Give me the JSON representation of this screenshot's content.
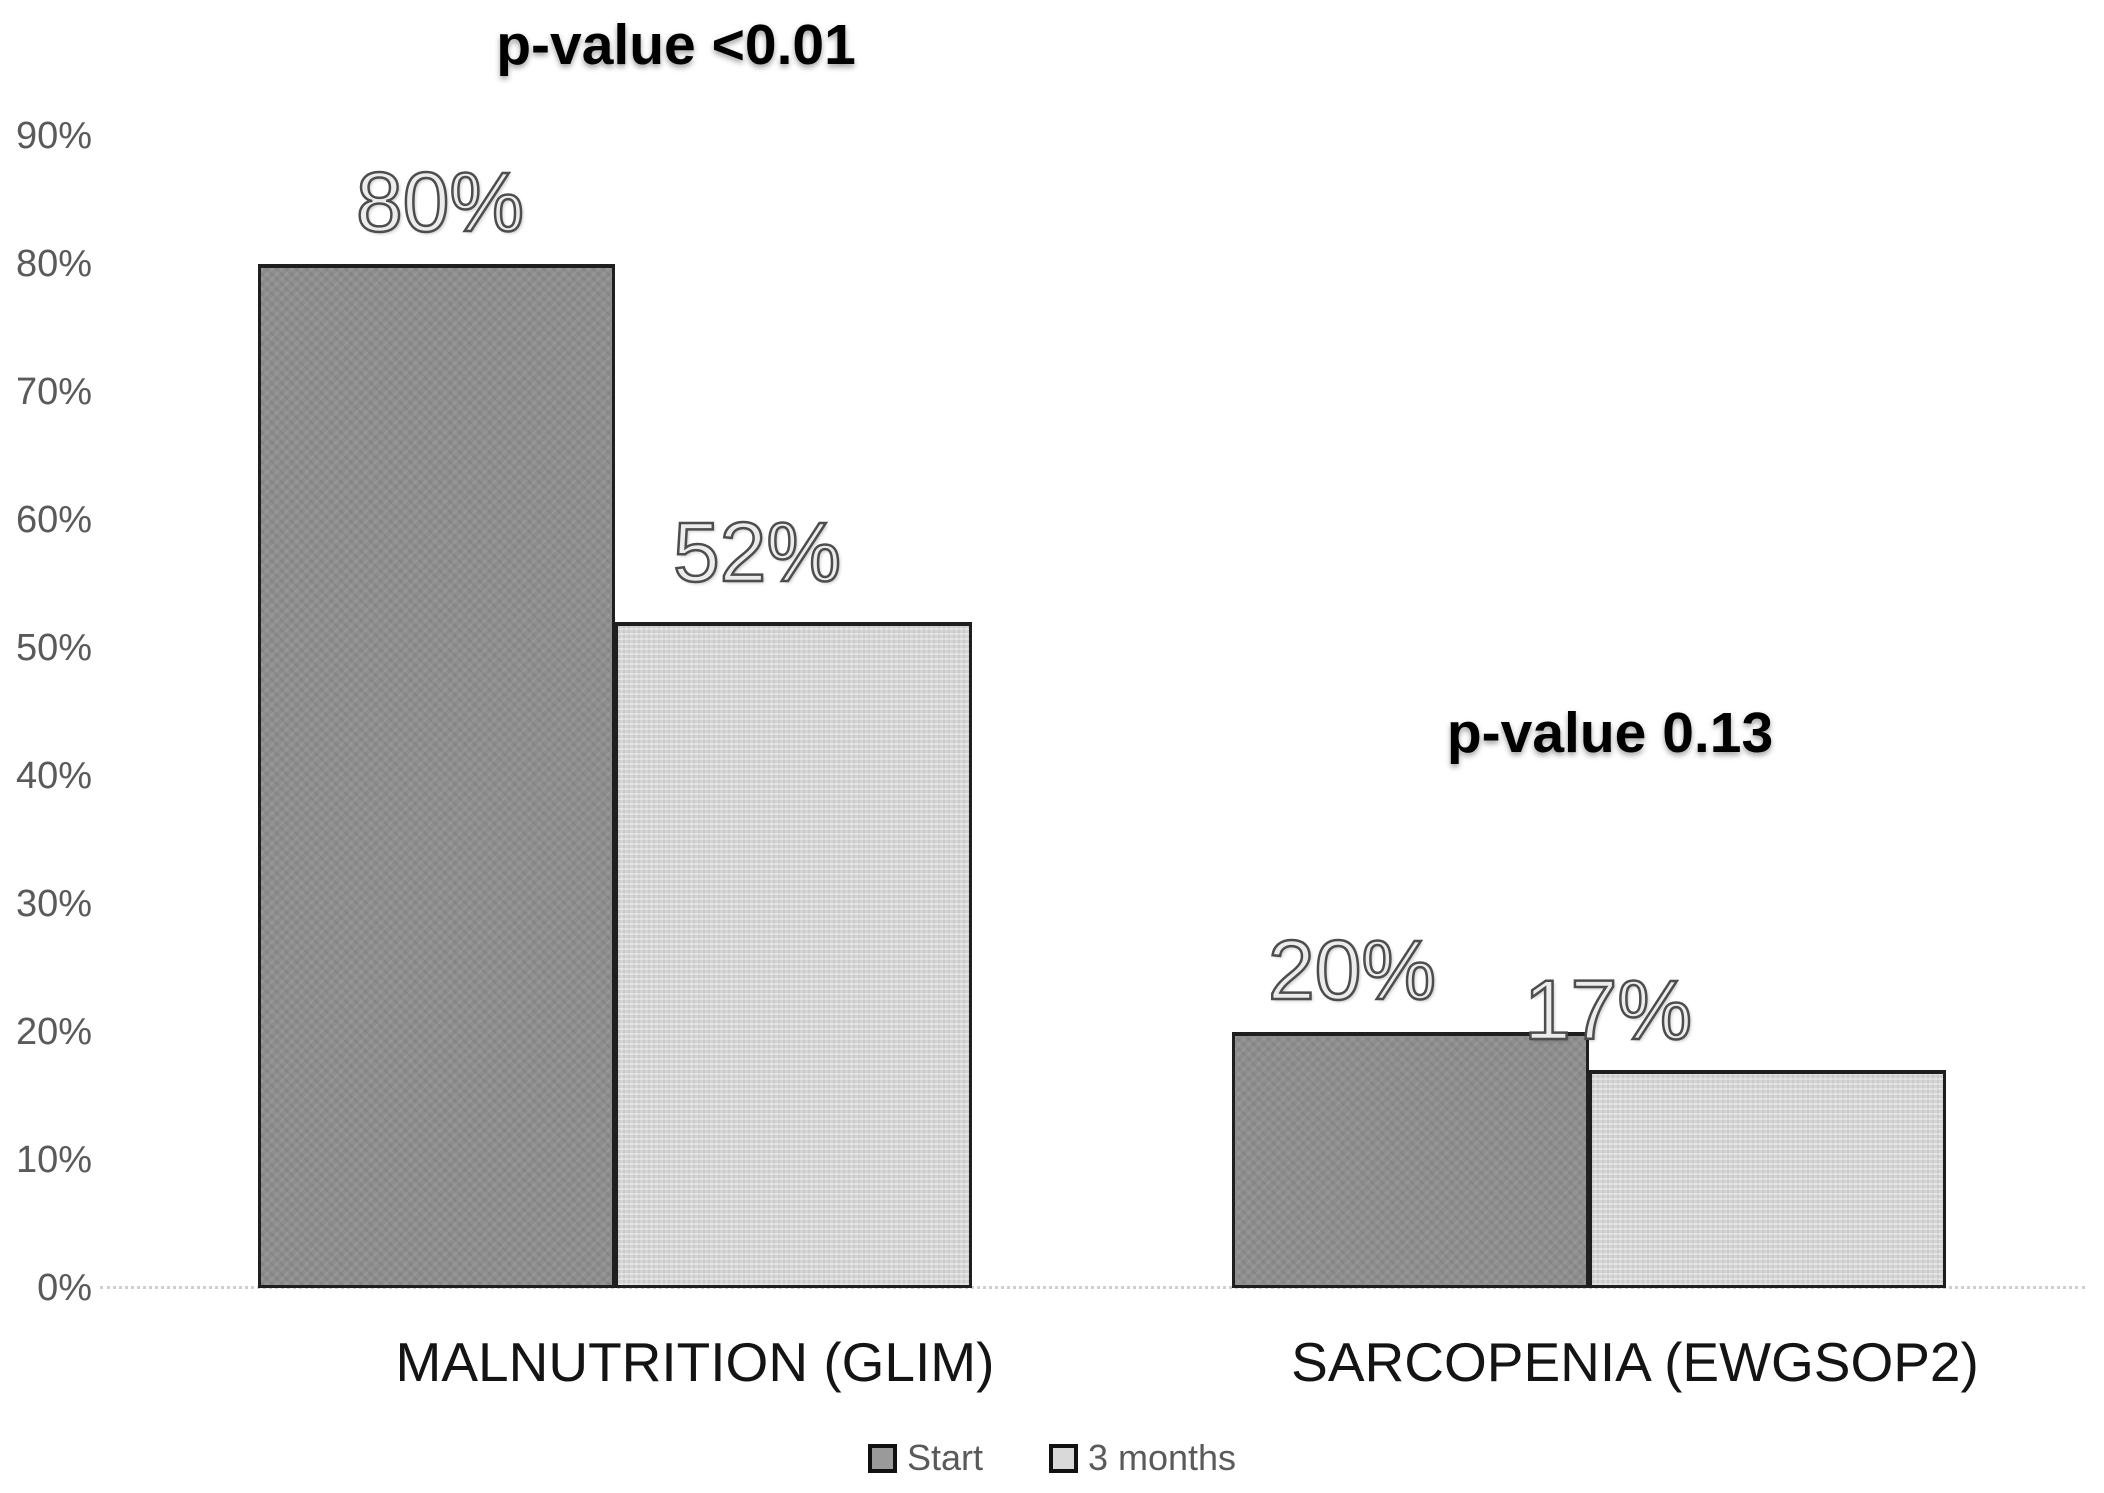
{
  "chart_data": {
    "type": "bar",
    "categories": [
      "MALNUTRITION (GLIM)",
      "SARCOPENIA (EWGSOP2)"
    ],
    "series": [
      {
        "name": "Start",
        "values": [
          80,
          20
        ],
        "labels": [
          "80%",
          "20%"
        ],
        "color": "#8e8e8e"
      },
      {
        "name": "3 months",
        "values": [
          52,
          17
        ],
        "labels": [
          "52%",
          "17%"
        ],
        "color": "#d5d5d5"
      }
    ],
    "value_unit": "%",
    "annotations": [
      {
        "text": "p-value <0.01",
        "applies_to": "MALNUTRITION (GLIM)"
      },
      {
        "text": "p-value 0.13",
        "applies_to": "SARCOPENIA (EWGSOP2)"
      }
    ],
    "yticks": [
      "90%",
      "80%",
      "70%",
      "60%",
      "50%",
      "40%",
      "30%",
      "20%",
      "10%",
      "0%"
    ],
    "ylim": [
      0,
      90
    ],
    "grid": false,
    "legend_position": "bottom",
    "colors": {
      "start_bar": "#8e8e8e",
      "three_months_bar": "#d5d5d5",
      "bar_border": "#1f1f1f",
      "axis_text": "#5a5a5a",
      "annotation_text": "#000000"
    }
  }
}
